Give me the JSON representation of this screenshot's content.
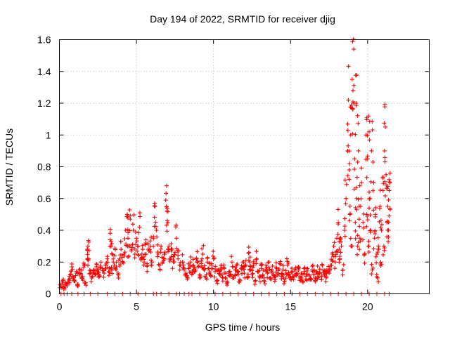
{
  "chart_data": {
    "type": "scatter",
    "title": "Day 194 of 2022, SRMTID for receiver djig",
    "xlabel": "GPS time / hours",
    "ylabel": "SRMTID / TECUs",
    "xlim": [
      0,
      24
    ],
    "ylim": [
      0,
      1.6
    ],
    "xticks": [
      0,
      5,
      10,
      15,
      20
    ],
    "yticks": [
      0,
      0.2,
      0.4,
      0.6,
      0.8,
      1,
      1.2,
      1.4,
      1.6
    ],
    "ytick_labels": [
      "0",
      "0.2",
      "0.4",
      "0.6",
      "0.8",
      "1",
      "1.2",
      "1.4",
      "1.6"
    ],
    "grid": true,
    "marker": "+",
    "color": "#ff0000",
    "series": [
      {
        "name": "SRMTID",
        "points": [
          [
            0.1,
            0.05
          ],
          [
            0.2,
            0.08
          ],
          [
            0.3,
            0.04
          ],
          [
            0.4,
            0.07
          ],
          [
            0.5,
            0.06
          ],
          [
            0.6,
            0.09
          ],
          [
            0.7,
            0.12
          ],
          [
            0.8,
            0.17
          ],
          [
            0.9,
            0.1
          ],
          [
            1.0,
            0.08
          ],
          [
            1.1,
            0.14
          ],
          [
            1.2,
            0.06
          ],
          [
            1.3,
            0.15
          ],
          [
            1.4,
            0.12
          ],
          [
            1.5,
            0.1
          ],
          [
            1.6,
            0.18
          ],
          [
            1.7,
            0.07
          ],
          [
            1.8,
            0.28
          ],
          [
            1.85,
            0.3
          ],
          [
            1.9,
            0.22
          ],
          [
            2.0,
            0.13
          ],
          [
            2.1,
            0.1
          ],
          [
            2.2,
            0.15
          ],
          [
            2.3,
            0.12
          ],
          [
            2.4,
            0.17
          ],
          [
            2.5,
            0.14
          ],
          [
            2.6,
            0.11
          ],
          [
            2.7,
            0.2
          ],
          [
            2.8,
            0.16
          ],
          [
            2.9,
            0.13
          ],
          [
            3.0,
            0.18
          ],
          [
            3.1,
            0.22
          ],
          [
            3.2,
            0.14
          ],
          [
            3.3,
            0.34
          ],
          [
            3.35,
            0.3
          ],
          [
            3.4,
            0.15
          ],
          [
            3.5,
            0.2
          ],
          [
            3.6,
            0.24
          ],
          [
            3.7,
            0.17
          ],
          [
            3.8,
            0.12
          ],
          [
            3.9,
            0.22
          ],
          [
            4.0,
            0.28
          ],
          [
            4.1,
            0.2
          ],
          [
            4.2,
            0.25
          ],
          [
            4.3,
            0.4
          ],
          [
            4.4,
            0.5
          ],
          [
            4.45,
            0.35
          ],
          [
            4.5,
            0.3
          ],
          [
            4.6,
            0.47
          ],
          [
            4.7,
            0.28
          ],
          [
            4.8,
            0.4
          ],
          [
            4.9,
            0.25
          ],
          [
            5.0,
            0.35
          ],
          [
            5.1,
            0.3
          ],
          [
            5.2,
            0.42
          ],
          [
            5.3,
            0.22
          ],
          [
            5.4,
            0.28
          ],
          [
            5.5,
            0.2
          ],
          [
            5.6,
            0.32
          ],
          [
            5.7,
            0.18
          ],
          [
            5.8,
            0.27
          ],
          [
            5.9,
            0.3
          ],
          [
            6.0,
            0.2
          ],
          [
            6.1,
            0.36
          ],
          [
            6.2,
            0.55
          ],
          [
            6.3,
            0.4
          ],
          [
            6.4,
            0.25
          ],
          [
            6.5,
            0.18
          ],
          [
            6.6,
            0.3
          ],
          [
            6.7,
            0.2
          ],
          [
            6.8,
            0.25
          ],
          [
            6.9,
            0.59
          ],
          [
            6.95,
            0.55
          ],
          [
            7.0,
            0.46
          ],
          [
            7.1,
            0.3
          ],
          [
            7.2,
            0.22
          ],
          [
            7.3,
            0.28
          ],
          [
            7.4,
            0.2
          ],
          [
            7.5,
            0.26
          ],
          [
            7.6,
            0.35
          ],
          [
            7.7,
            0.22
          ],
          [
            7.8,
            0.18
          ],
          [
            8.0,
            0.2
          ],
          [
            8.1,
            0.15
          ],
          [
            8.2,
            0.13
          ],
          [
            8.3,
            0.1
          ],
          [
            8.4,
            0.16
          ],
          [
            8.5,
            0.2
          ],
          [
            8.6,
            0.12
          ],
          [
            8.7,
            0.18
          ],
          [
            8.8,
            0.14
          ],
          [
            8.9,
            0.22
          ],
          [
            9.0,
            0.17
          ],
          [
            9.1,
            0.12
          ],
          [
            9.2,
            0.19
          ],
          [
            9.3,
            0.25
          ],
          [
            9.4,
            0.15
          ],
          [
            9.5,
            0.1
          ],
          [
            9.6,
            0.2
          ],
          [
            9.7,
            0.16
          ],
          [
            9.8,
            0.12
          ],
          [
            9.9,
            0.18
          ],
          [
            10.0,
            0.22
          ],
          [
            10.1,
            0.14
          ],
          [
            10.2,
            0.08
          ],
          [
            10.3,
            0.15
          ],
          [
            10.4,
            0.12
          ],
          [
            10.5,
            0.18
          ],
          [
            10.6,
            0.1
          ],
          [
            10.7,
            0.16
          ],
          [
            10.8,
            0.13
          ],
          [
            10.9,
            0.07
          ],
          [
            11.0,
            0.14
          ],
          [
            11.1,
            0.12
          ],
          [
            11.2,
            0.2
          ],
          [
            11.3,
            0.1
          ],
          [
            11.4,
            0.15
          ],
          [
            11.5,
            0.18
          ],
          [
            11.6,
            0.12
          ],
          [
            11.7,
            0.09
          ],
          [
            11.8,
            0.16
          ],
          [
            11.9,
            0.2
          ],
          [
            12.0,
            0.13
          ],
          [
            12.1,
            0.18
          ],
          [
            12.2,
            0.1
          ],
          [
            12.3,
            0.26
          ],
          [
            12.35,
            0.2
          ],
          [
            12.4,
            0.15
          ],
          [
            12.5,
            0.12
          ],
          [
            12.6,
            0.18
          ],
          [
            12.7,
            0.08
          ],
          [
            12.8,
            0.22
          ],
          [
            12.9,
            0.14
          ],
          [
            13.0,
            0.1
          ],
          [
            13.1,
            0.16
          ],
          [
            13.2,
            0.12
          ],
          [
            13.3,
            0.08
          ],
          [
            13.4,
            0.18
          ],
          [
            13.5,
            0.13
          ],
          [
            13.6,
            0.2
          ],
          [
            13.7,
            0.1
          ],
          [
            13.8,
            0.15
          ],
          [
            13.9,
            0.12
          ],
          [
            14.0,
            0.09
          ],
          [
            14.1,
            0.16
          ],
          [
            14.2,
            0.13
          ],
          [
            14.3,
            0.19
          ],
          [
            14.4,
            0.11
          ],
          [
            14.5,
            0.15
          ],
          [
            14.6,
            0.08
          ],
          [
            14.7,
            0.13
          ],
          [
            14.8,
            0.18
          ],
          [
            14.9,
            0.12
          ],
          [
            15.0,
            0.1
          ],
          [
            15.1,
            0.14
          ],
          [
            15.2,
            0.09
          ],
          [
            15.3,
            0.15
          ],
          [
            15.4,
            0.12
          ],
          [
            15.5,
            0.17
          ],
          [
            15.6,
            0.1
          ],
          [
            15.7,
            0.13
          ],
          [
            15.8,
            0.08
          ],
          [
            15.9,
            0.14
          ],
          [
            16.0,
            0.11
          ],
          [
            16.1,
            0.16
          ],
          [
            16.2,
            0.12
          ],
          [
            16.3,
            0.09
          ],
          [
            16.4,
            0.15
          ],
          [
            16.5,
            0.12
          ],
          [
            16.6,
            0.1
          ],
          [
            16.7,
            0.14
          ],
          [
            16.8,
            0.11
          ],
          [
            16.9,
            0.13
          ],
          [
            17.0,
            0.09
          ],
          [
            17.1,
            0.15
          ],
          [
            17.2,
            0.12
          ],
          [
            17.3,
            0.1
          ],
          [
            17.4,
            0.14
          ],
          [
            17.5,
            0.13
          ],
          [
            17.6,
            0.18
          ],
          [
            17.7,
            0.25
          ],
          [
            17.8,
            0.3
          ],
          [
            17.9,
            0.2
          ],
          [
            18.0,
            0.35
          ],
          [
            18.1,
            0.45
          ],
          [
            18.15,
            0.28
          ],
          [
            18.2,
            0.22
          ],
          [
            18.3,
            0.3
          ],
          [
            18.4,
            0.15
          ],
          [
            18.5,
            0.4
          ],
          [
            18.6,
            0.6
          ],
          [
            18.7,
            0.9
          ],
          [
            18.75,
            1.22
          ],
          [
            18.8,
            0.72
          ],
          [
            18.85,
            0.5
          ],
          [
            18.9,
            1.0
          ],
          [
            18.95,
            0.3
          ],
          [
            19.0,
            1.35
          ],
          [
            19.05,
            1.28
          ],
          [
            19.1,
            1.54
          ],
          [
            19.15,
            0.85
          ],
          [
            19.2,
            0.45
          ],
          [
            19.25,
            1.2
          ],
          [
            19.3,
            0.6
          ],
          [
            19.35,
            0.3
          ],
          [
            19.4,
            0.9
          ],
          [
            19.45,
            0.55
          ],
          [
            19.5,
            0.35
          ],
          [
            19.6,
            0.7
          ],
          [
            19.7,
            0.45
          ],
          [
            19.8,
            0.25
          ],
          [
            19.9,
            1.0
          ],
          [
            19.95,
            0.5
          ],
          [
            20.0,
            0.85
          ],
          [
            20.05,
            0.3
          ],
          [
            20.1,
            1.02
          ],
          [
            20.15,
            0.6
          ],
          [
            20.2,
            0.4
          ],
          [
            20.25,
            0.9
          ],
          [
            20.3,
            0.15
          ],
          [
            20.4,
            0.7
          ],
          [
            20.45,
            0.35
          ],
          [
            20.5,
            0.5
          ],
          [
            20.6,
            0.25
          ],
          [
            20.65,
            0.1
          ],
          [
            20.7,
            0.3
          ],
          [
            20.8,
            0.55
          ],
          [
            20.85,
            0.2
          ],
          [
            20.9,
            0.4
          ],
          [
            21.0,
            0.65
          ],
          [
            21.05,
            0.3
          ],
          [
            21.1,
            0.9
          ],
          [
            21.15,
            1.05
          ],
          [
            21.2,
            0.75
          ],
          [
            21.25,
            0.45
          ],
          [
            21.3,
            0.55
          ],
          [
            21.35,
            0.4
          ],
          [
            21.4,
            0.65
          ],
          [
            21.45,
            0.7
          ]
        ]
      }
    ],
    "zero_markers_x": [
      0.1,
      0.3,
      0.5,
      0.8,
      1.2,
      1.6,
      2.0,
      2.5,
      3.1,
      3.6,
      4.1,
      4.6,
      5.1,
      5.6,
      6.1,
      6.3,
      6.6,
      7.1,
      7.6,
      7.8,
      8.1,
      8.4,
      8.6,
      9.1,
      9.6,
      10.1,
      10.6,
      11.1,
      11.6,
      12.1,
      12.6,
      13.1,
      13.6,
      14.1,
      14.6,
      15.1,
      15.6,
      16.1,
      16.6,
      17.1,
      17.6,
      18.1,
      18.6,
      19.1,
      19.6,
      20.1,
      20.6,
      21.1,
      21.4
    ]
  }
}
